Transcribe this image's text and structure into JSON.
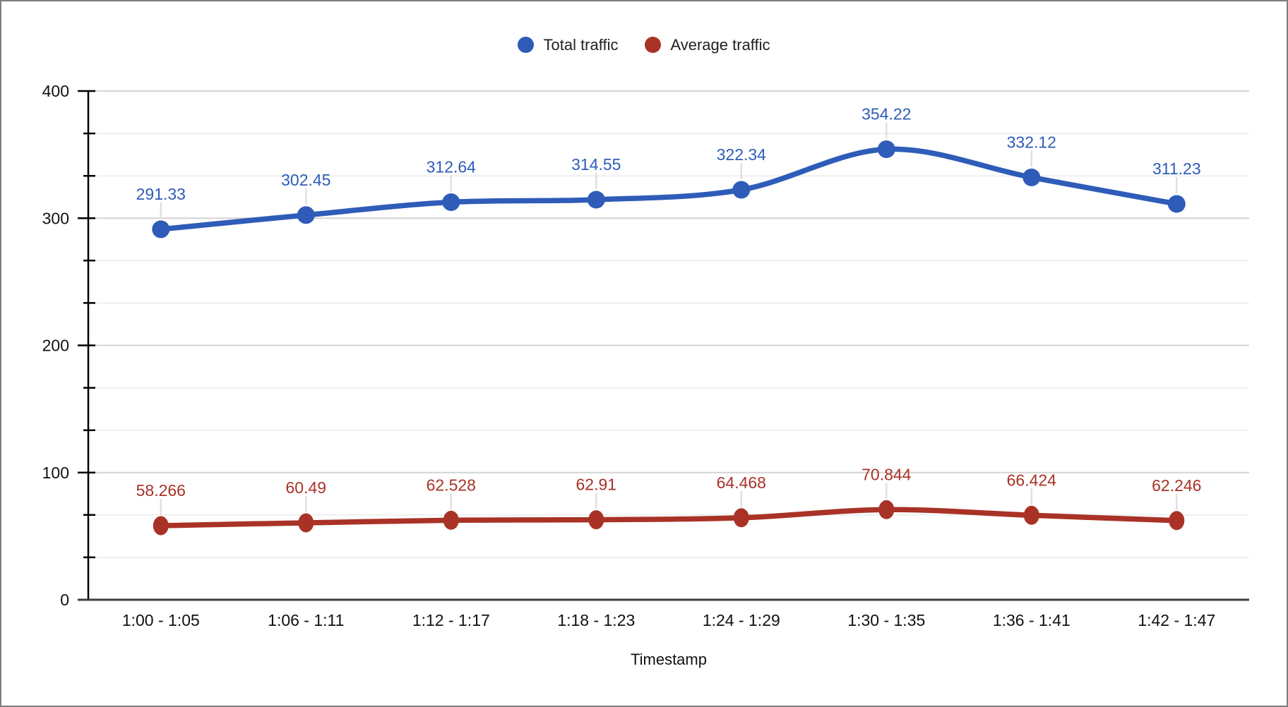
{
  "chart_data": {
    "type": "line",
    "title": "",
    "xlabel": "Timestamp",
    "ylabel": "",
    "categories": [
      "1:00 - 1:05",
      "1:06 - 1:11",
      "1:12 - 1:17",
      "1:18 - 1:23",
      "1:24 - 1:29",
      "1:30 - 1:35",
      "1:36 - 1:41",
      "1:42 - 1:47"
    ],
    "yticks": [
      "0",
      "100",
      "200",
      "300",
      "400"
    ],
    "ylim": [
      0,
      400
    ],
    "grid": "horizontal, major every 100 with 2 minor lines between",
    "legend_position": "top-center",
    "smooth_lines": true,
    "series": [
      {
        "name": "Total traffic",
        "color": "#2e5cb8",
        "values": [
          291.33,
          302.45,
          312.64,
          314.55,
          322.34,
          354.22,
          332.12,
          311.23
        ],
        "labels": [
          "291.33",
          "302.45",
          "312.64",
          "314.55",
          "322.34",
          "354.22",
          "332.12",
          "311.23"
        ]
      },
      {
        "name": "Average traffic",
        "color": "#a93226",
        "values": [
          58.266,
          60.49,
          62.528,
          62.91,
          64.468,
          70.844,
          66.424,
          62.246
        ],
        "labels": [
          "58.266",
          "60.49",
          "62.528",
          "62.91",
          "64.468",
          "70.844",
          "66.424",
          "62.246"
        ]
      }
    ]
  },
  "colors": {
    "grid_major": "#d4d4d4",
    "grid_minor": "#efefef",
    "baseline": "#3c3c3c",
    "axis": "#000000",
    "leader": "#e0e0e0",
    "tick_text": "#111111",
    "legend_text": "#212121",
    "frame_border": "#7e7e7e",
    "background": "#ffffff"
  }
}
